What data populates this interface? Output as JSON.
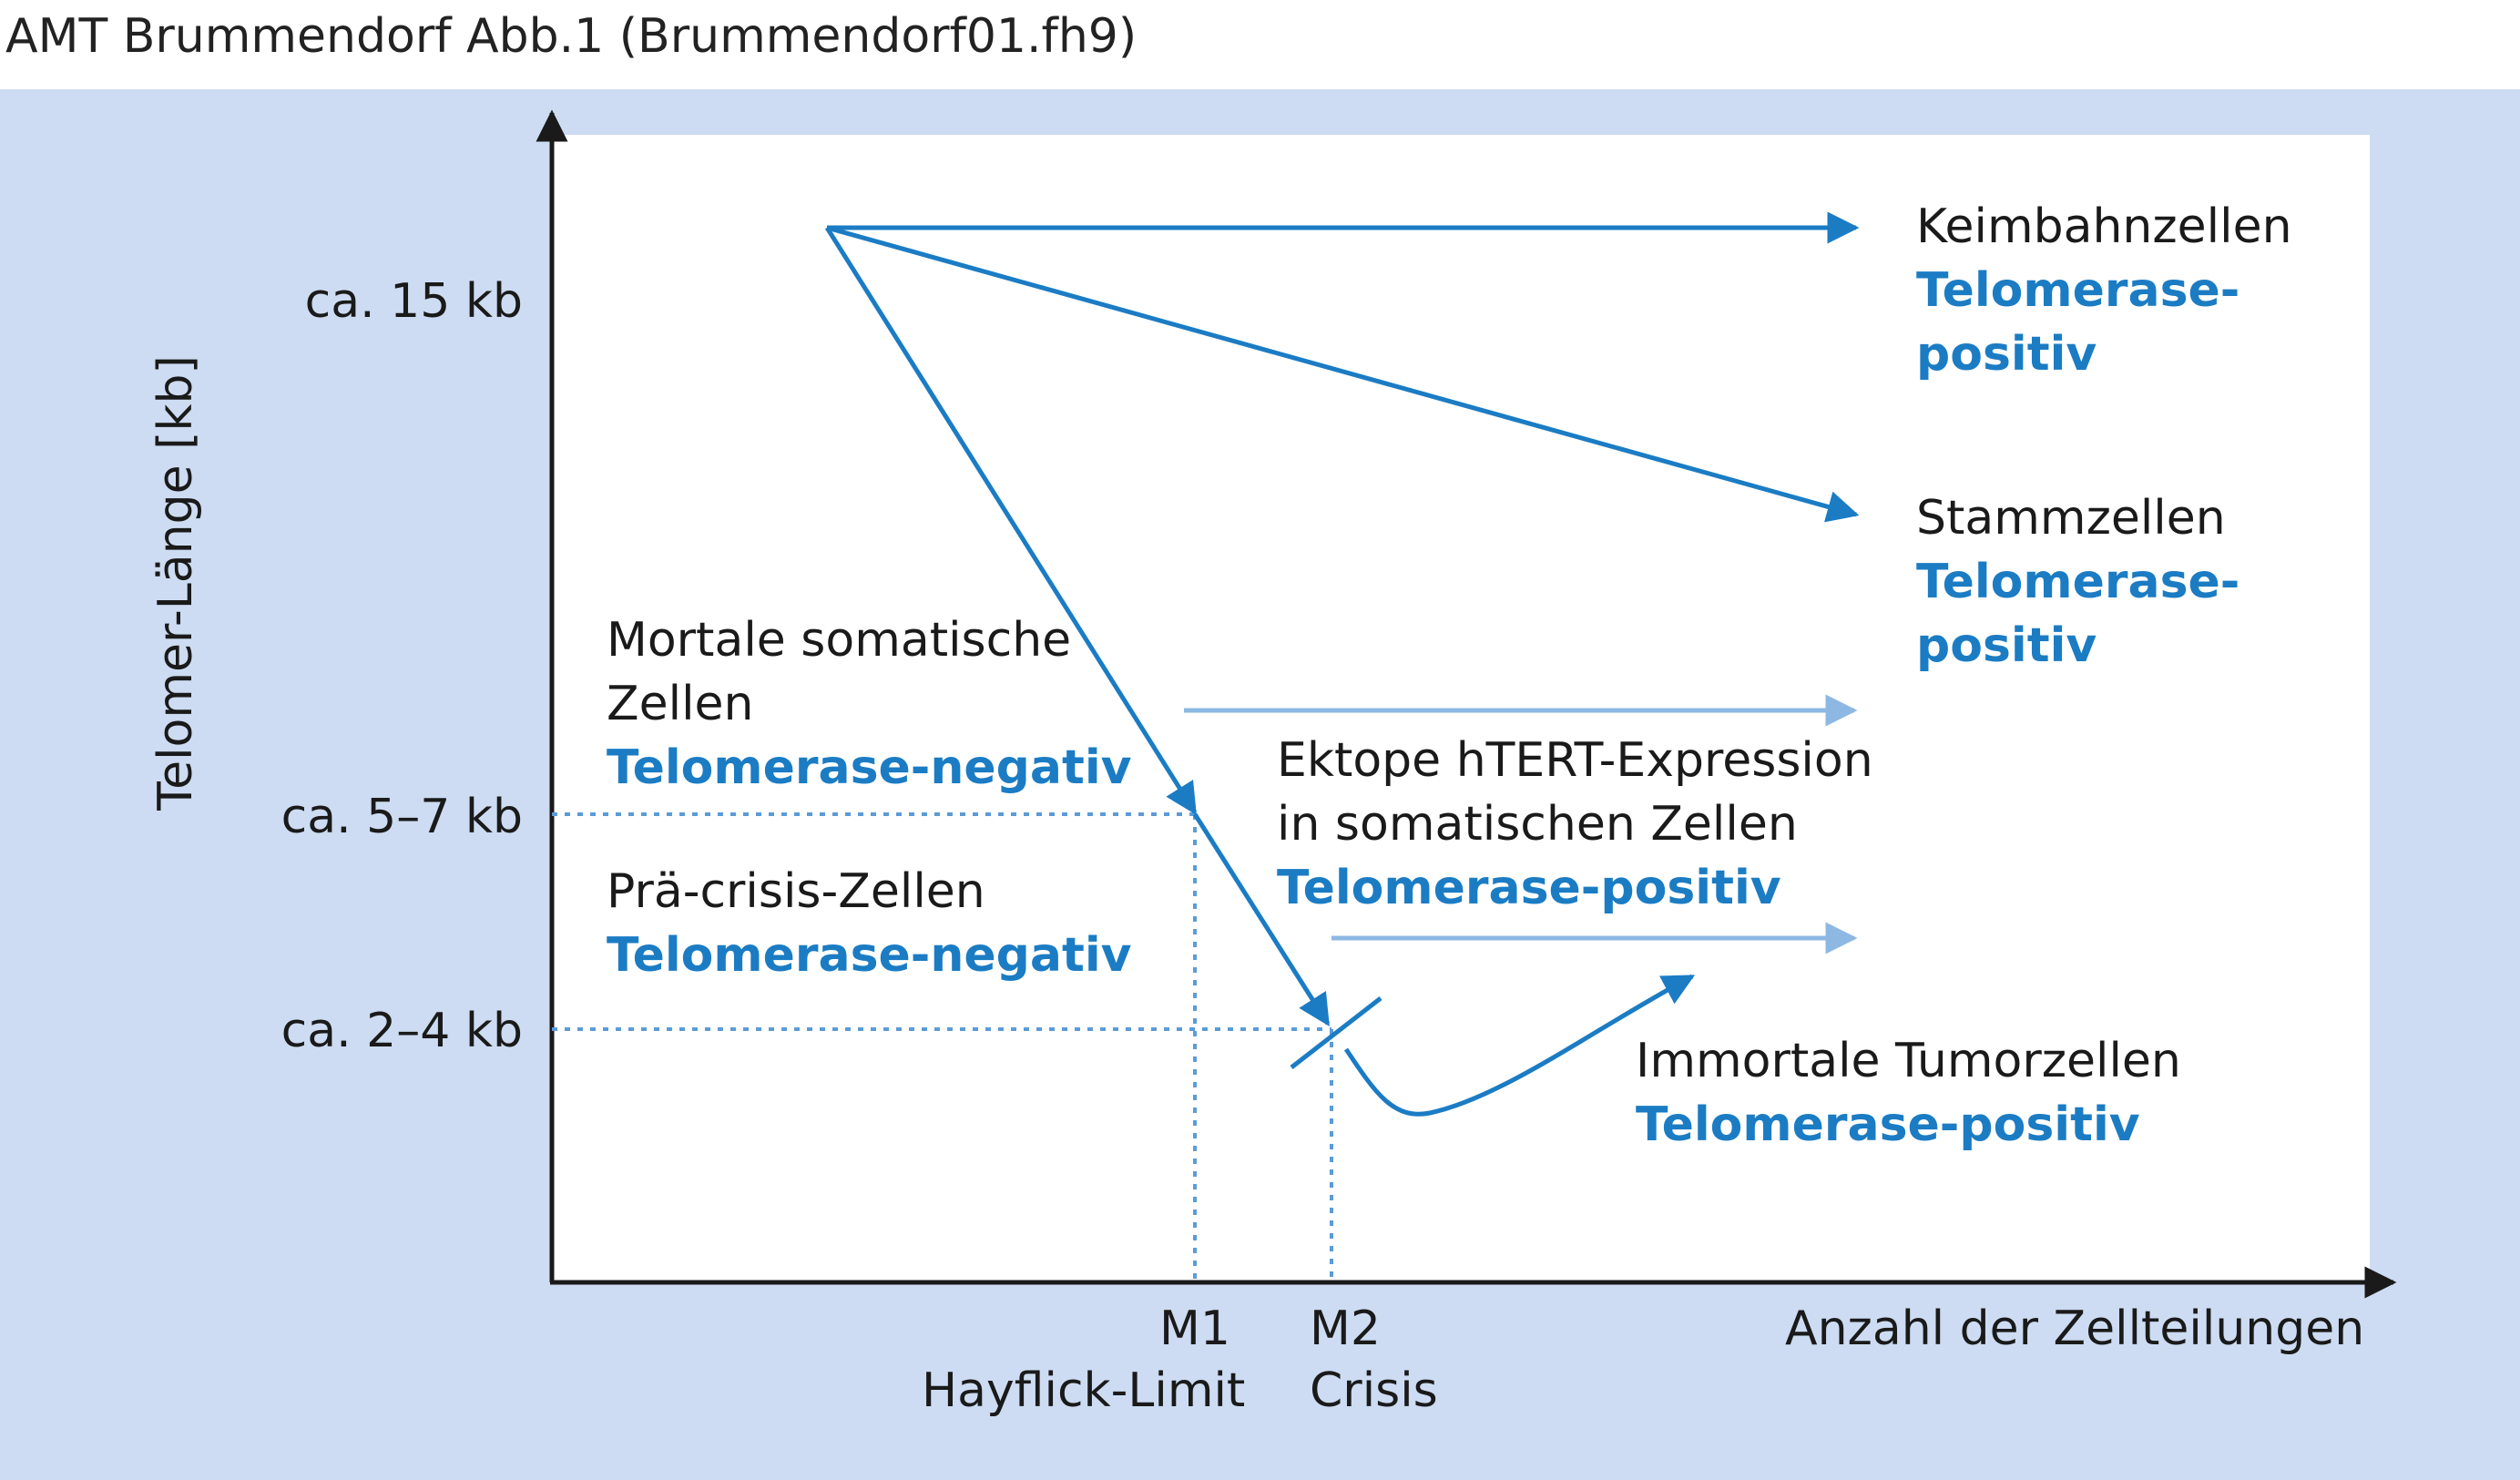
{
  "header": {
    "title": "AMT Brummendorf Abb.1 (Brummendorf01.fh9)"
  },
  "axes": {
    "y_label": "Telomer-Länge [kb]",
    "x_label": "Anzahl der Zellteilungen",
    "y_ticks": [
      "ca. 15 kb",
      "ca. 5–7 kb",
      "ca. 2–4 kb"
    ],
    "x_marks": [
      {
        "code": "M1",
        "name": "Hayflick-Limit"
      },
      {
        "code": "M2",
        "name": "Crisis"
      }
    ]
  },
  "groups": {
    "keimbahn": {
      "name": "Keimbahnzellen",
      "status_1": "Telomerase-",
      "status_2": "positiv"
    },
    "stamm": {
      "name": "Stammzellen",
      "status_1": "Telomerase-",
      "status_2": "positiv"
    },
    "mortal": {
      "name_1": "Mortale somatische",
      "name_2": "Zellen",
      "status": "Telomerase-negativ"
    },
    "ektop": {
      "name_1": "Ektope hTERT-Expression",
      "name_2": "in somatischen Zellen",
      "status": "Telomerase-positiv"
    },
    "praecrisis": {
      "name": "Prä-crisis-Zellen",
      "status": "Telomerase-negativ"
    },
    "tumor": {
      "name": "Immortale Tumorzellen",
      "status": "Telomerase-positiv"
    }
  },
  "colors": {
    "panel": "#cddcf2",
    "arrow_dark": "#1b7cc4",
    "arrow_light": "#8db8e3",
    "axis": "#1a1a1a"
  }
}
